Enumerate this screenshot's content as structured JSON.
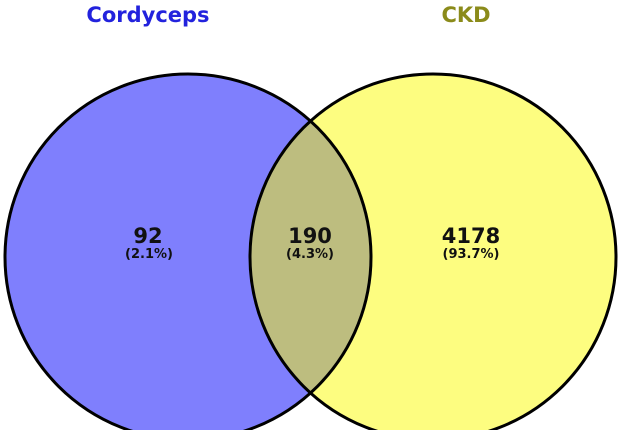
{
  "sets": [
    {
      "name": "Cordyceps",
      "title_color": "#2222dd",
      "fill_color": "#7f7ffd"
    },
    {
      "name": "CKD",
      "title_color": "#8b8b1a",
      "fill_color": "#fdfd80"
    }
  ],
  "overlap_fill_color": "#bdbd7f",
  "outline_color": "#000000",
  "regions": {
    "cordyceps_only": {
      "count": "92",
      "percent": "(2.1%)"
    },
    "both": {
      "count": "190",
      "percent": "(4.3%)"
    },
    "ckd_only": {
      "count": "4178",
      "percent": "(93.7%)"
    }
  }
}
